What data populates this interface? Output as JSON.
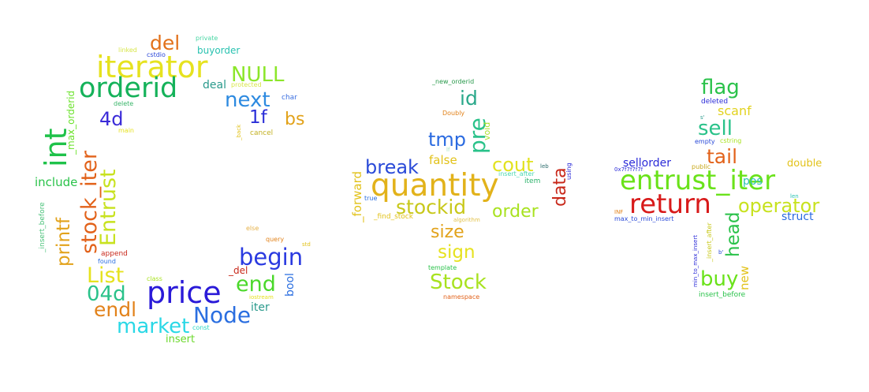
{
  "cloud": {
    "words": [
      {
        "text": "iterator",
        "color": "#e6e21f"
      },
      {
        "text": "orderid",
        "color": "#15b25a"
      },
      {
        "text": "del",
        "color": "#e2711a"
      },
      {
        "text": "NULL",
        "color": "#8ce62a"
      },
      {
        "text": "buyorder",
        "color": "#29c2b0"
      },
      {
        "text": "private",
        "color": "#49d6a4"
      },
      {
        "text": "linked",
        "color": "#d8e64a"
      },
      {
        "text": "cstdio",
        "color": "#2a46d8"
      },
      {
        "text": "next",
        "color": "#2d8ae0"
      },
      {
        "text": "deal",
        "color": "#2a9a8c"
      },
      {
        "text": "protected",
        "color": "#d8e64a"
      },
      {
        "text": "char",
        "color": "#3a6ee0"
      },
      {
        "text": "1f",
        "color": "#2a2ed8"
      },
      {
        "text": "bs",
        "color": "#e2a21a"
      },
      {
        "text": "4d",
        "color": "#3a2ad8"
      },
      {
        "text": "delete",
        "color": "#3ab66a"
      },
      {
        "text": "main",
        "color": "#e6e21f"
      },
      {
        "text": "_back",
        "color": "#e2c21a"
      },
      {
        "text": "cancel",
        "color": "#c2b020"
      },
      {
        "text": "int",
        "color": "#1fc24a"
      },
      {
        "text": "_max_orderid",
        "color": "#6ae22a"
      },
      {
        "text": "stock_iter",
        "color": "#e2621a"
      },
      {
        "text": "Entrust",
        "color": "#c8e21f"
      },
      {
        "text": "include",
        "color": "#2ac24a"
      },
      {
        "text": "printf",
        "color": "#e2a21a"
      },
      {
        "text": "_insert_before",
        "color": "#4ac27a"
      },
      {
        "text": "List",
        "color": "#e6e21f"
      },
      {
        "text": "04d",
        "color": "#2ac28a"
      },
      {
        "text": "price",
        "color": "#2a1ad8"
      },
      {
        "text": "begin",
        "color": "#2a3ae0"
      },
      {
        "text": "end",
        "color": "#4ad82a"
      },
      {
        "text": "_del",
        "color": "#c8281a"
      },
      {
        "text": "Node",
        "color": "#2a6ee0"
      },
      {
        "text": "endl",
        "color": "#e2821a"
      },
      {
        "text": "market",
        "color": "#2ad8e6"
      },
      {
        "text": "insert",
        "color": "#6ad82a"
      },
      {
        "text": "append",
        "color": "#c8281a"
      },
      {
        "text": "found",
        "color": "#2a6ee0"
      },
      {
        "text": "class",
        "color": "#a8e21f"
      },
      {
        "text": "const",
        "color": "#2ad8c2"
      },
      {
        "text": "else",
        "color": "#e6b24a"
      },
      {
        "text": "query",
        "color": "#e2821a"
      },
      {
        "text": "std",
        "color": "#e2c21a"
      },
      {
        "text": "bool",
        "color": "#2a6ee0"
      },
      {
        "text": "iter",
        "color": "#2a9a8c"
      },
      {
        "text": "iostream",
        "color": "#e6e21f"
      },
      {
        "text": "_new_orderid",
        "color": "#2a9a4c"
      },
      {
        "text": "id",
        "color": "#2aa88a"
      },
      {
        "text": "Doubly",
        "color": "#e2821a"
      },
      {
        "text": "pre",
        "color": "#2ac28a"
      },
      {
        "text": "void",
        "color": "#a8e22a"
      },
      {
        "text": "tmp",
        "color": "#2a6ae0"
      },
      {
        "text": "lf",
        "color": "#a8e2c2"
      },
      {
        "text": "false",
        "color": "#e2c21a"
      },
      {
        "text": "break",
        "color": "#2a4ad8"
      },
      {
        "text": "cout",
        "color": "#e2e21f"
      },
      {
        "text": "leb",
        "color": "#2a6a6a"
      },
      {
        "text": "using",
        "color": "#2a2ad8"
      },
      {
        "text": "_forward",
        "color": "#e2c21a"
      },
      {
        "text": "quantity",
        "color": "#e2b21a"
      },
      {
        "text": "insert_after",
        "color": "#4ad8b2"
      },
      {
        "text": "item",
        "color": "#2ab26a"
      },
      {
        "text": "data",
        "color": "#c8281a"
      },
      {
        "text": "true",
        "color": "#2a6ee0"
      },
      {
        "text": "stockid",
        "color": "#c8c81a"
      },
      {
        "text": "order",
        "color": "#a8e21f"
      },
      {
        "text": "_find_stock",
        "color": "#e2c21a"
      },
      {
        "text": "algorithm",
        "color": "#e2c24a"
      },
      {
        "text": "size",
        "color": "#e2a21a"
      },
      {
        "text": "sign",
        "color": "#e6e21f"
      },
      {
        "text": "template",
        "color": "#2ac24a"
      },
      {
        "text": "Stock",
        "color": "#a8e21f"
      },
      {
        "text": "namespace",
        "color": "#e2621a"
      },
      {
        "text": "flag",
        "color": "#2ac24a"
      },
      {
        "text": "deleted",
        "color": "#2a2ad8"
      },
      {
        "text": "scanf",
        "color": "#e2d21f"
      },
      {
        "text": "s'",
        "color": "#2a9a8c"
      },
      {
        "text": "sell",
        "color": "#2ac28a"
      },
      {
        "text": "empty",
        "color": "#2a4ad8"
      },
      {
        "text": "cstring",
        "color": "#a8e21f"
      },
      {
        "text": "tail",
        "color": "#e2621a"
      },
      {
        "text": "sellorder",
        "color": "#2a2ad8"
      },
      {
        "text": "public",
        "color": "#c8a81a"
      },
      {
        "text": "double",
        "color": "#e2c21a"
      },
      {
        "text": "0x7f7f7f7f",
        "color": "#2a2ad8"
      },
      {
        "text": "entrust_iter",
        "color": "#6ae21a"
      },
      {
        "text": "pos",
        "color": "#2ac2b2"
      },
      {
        "text": "return",
        "color": "#d81a1a"
      },
      {
        "text": "operator",
        "color": "#c8e21f"
      },
      {
        "text": "len",
        "color": "#2ac2b2"
      },
      {
        "text": "INF",
        "color": "#e2821a"
      },
      {
        "text": "max_to_min_insert",
        "color": "#2a4ad8"
      },
      {
        "text": "struct",
        "color": "#2a6ae0"
      },
      {
        "text": "min_to_max_insert",
        "color": "#2a2ad8"
      },
      {
        "text": "_insert_after",
        "color": "#c8c81a"
      },
      {
        "text": "head",
        "color": "#2ac24a"
      },
      {
        "text": "b'",
        "color": "#2a4ad8"
      },
      {
        "text": "buy",
        "color": "#6ae21a"
      },
      {
        "text": "new",
        "color": "#e2c21a"
      },
      {
        "text": "insert_before",
        "color": "#2ac24a"
      }
    ]
  }
}
